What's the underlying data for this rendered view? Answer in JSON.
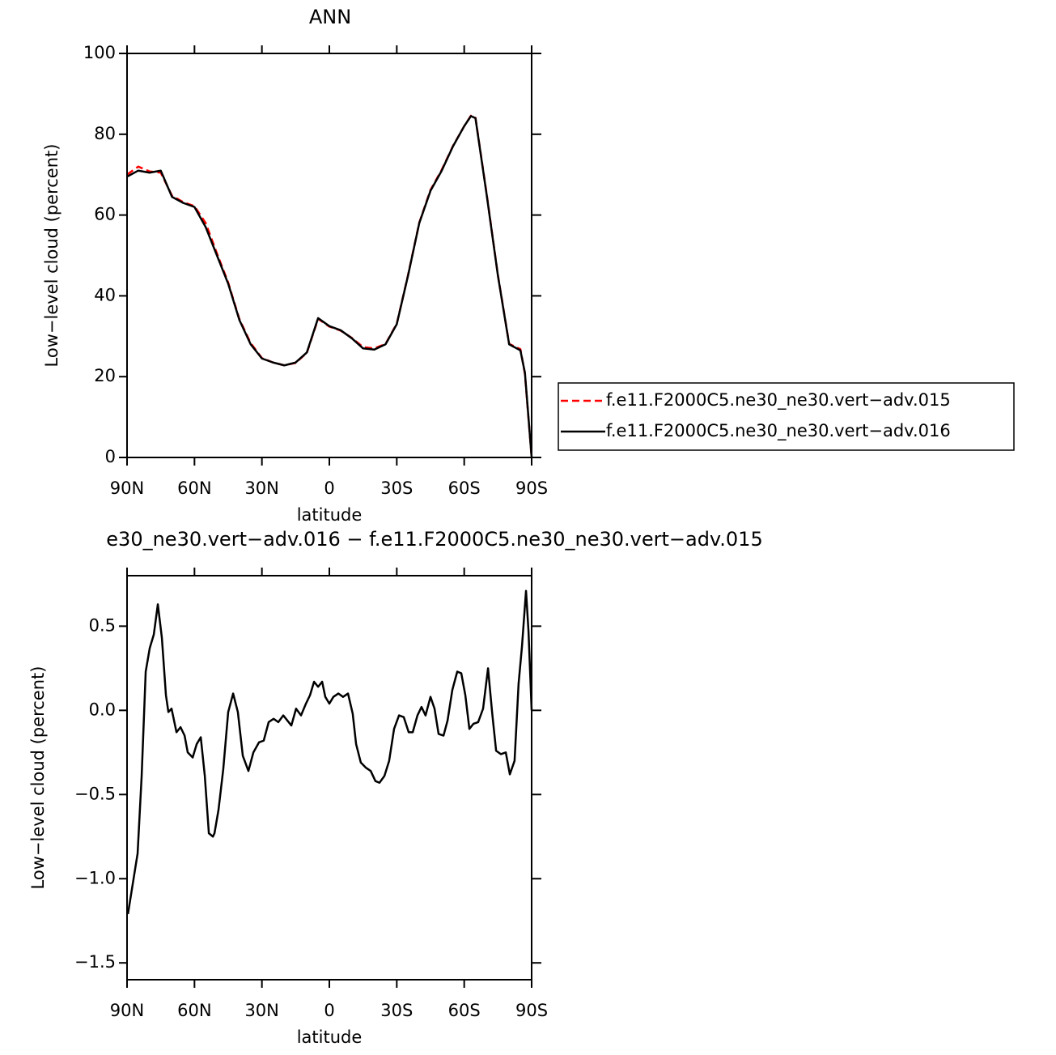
{
  "chart_data": [
    {
      "type": "line",
      "title": "ANN",
      "xlabel": "latitude",
      "ylabel": "Low−level cloud (percent)",
      "x": [
        90,
        85,
        80,
        75,
        70,
        65,
        60,
        55,
        50,
        45,
        40,
        35,
        30,
        25,
        20,
        15,
        10,
        5,
        0,
        -5,
        -10,
        -15,
        -20,
        -25,
        -30,
        -35,
        -40,
        -45,
        -50,
        -55,
        -60,
        -63,
        -65,
        -70,
        -75,
        -80,
        -85,
        -87,
        -90
      ],
      "series": [
        {
          "name": "f.e11.F2000C5.ne30_ne30.vert−adv.015",
          "color": "#ff0000",
          "dash": true,
          "values": [
            70,
            72,
            70.8,
            70.5,
            64.8,
            63.2,
            62.2,
            58,
            50.5,
            43.3,
            34.2,
            28.3,
            24.6,
            23.5,
            22.8,
            23.4,
            25.9,
            34.3,
            32.4,
            31.4,
            29.6,
            27.3,
            27,
            28.1,
            33.1,
            45.1,
            58.1,
            66.2,
            71.2,
            77.1,
            82,
            84.6,
            84.1,
            65.2,
            45.1,
            28.1,
            26.8,
            20.7,
            0
          ]
        },
        {
          "name": "f.e11.F2000C5.ne30_ne30.vert−adv.016",
          "color": "#000000",
          "dash": false,
          "values": [
            69.5,
            71,
            70.5,
            71,
            64.5,
            63,
            62,
            57,
            50,
            43,
            34,
            28,
            24.5,
            23.5,
            22.8,
            23.5,
            26,
            34.5,
            32.5,
            31.5,
            29.5,
            27,
            26.7,
            28,
            33,
            45,
            58,
            66,
            71,
            77,
            82,
            84.5,
            84,
            65,
            45,
            28,
            26.5,
            21,
            0
          ]
        }
      ],
      "xlim": [
        90,
        -90
      ],
      "xticks": [
        {
          "value": 90,
          "label": "90N"
        },
        {
          "value": 60,
          "label": "60N"
        },
        {
          "value": 30,
          "label": "30N"
        },
        0,
        {
          "value": -30,
          "label": "30S"
        },
        {
          "value": -60,
          "label": "60S"
        },
        {
          "value": -90,
          "label": "90S"
        }
      ],
      "ylim": [
        0,
        100
      ],
      "yticks": [
        0,
        20,
        40,
        60,
        80,
        100
      ],
      "legend": "right"
    },
    {
      "type": "line",
      "title": "e30_ne30.vert−adv.016 − f.e11.F2000C5.ne30_ne30.vert−adv.015",
      "xlabel": "latitude",
      "ylabel": "Low−level cloud (percent)",
      "x": [
        89.6,
        85.3,
        83.5,
        81.7,
        79.9,
        78.1,
        76.3,
        74.5,
        72.7,
        71.6,
        70.2,
        68,
        66.2,
        64.4,
        63,
        60.8,
        59,
        57.2,
        55.4,
        53.6,
        51.8,
        51.1,
        49.3,
        47.2,
        45,
        42.8,
        40.7,
        38.5,
        36,
        33.8,
        31.3,
        29.2,
        27,
        24.8,
        22.7,
        20.5,
        18.7,
        16.9,
        14.8,
        12.6,
        10.4,
        8.6,
        6.8,
        5,
        3.2,
        1.8,
        0,
        -1.8,
        -4,
        -6.1,
        -8.3,
        -10.4,
        -11.9,
        -14,
        -16.2,
        -18.4,
        -20.5,
        -22.3,
        -24.5,
        -26.6,
        -28.8,
        -31,
        -33.1,
        -35.3,
        -37.1,
        -39.2,
        -41,
        -42.8,
        -45,
        -46.8,
        -48.6,
        -50.8,
        -52.6,
        -54.7,
        -56.9,
        -58.7,
        -60.5,
        -62.3,
        -64.1,
        -66.2,
        -68.4,
        -70.6,
        -72.4,
        -74.2,
        -76.3,
        -78.5,
        -80.3,
        -82.4,
        -84.2,
        -85.7,
        -87.5,
        -88.6,
        -90
      ],
      "series": [
        {
          "color": "#000000",
          "dash": false,
          "values": [
            -1.21,
            -0.85,
            -0.39,
            0.23,
            0.37,
            0.45,
            0.63,
            0.43,
            0.09,
            -0.01,
            0.01,
            -0.13,
            -0.1,
            -0.15,
            -0.25,
            -0.28,
            -0.2,
            -0.16,
            -0.39,
            -0.73,
            -0.75,
            -0.73,
            -0.59,
            -0.35,
            -0.01,
            0.1,
            -0.01,
            -0.27,
            -0.36,
            -0.25,
            -0.19,
            -0.18,
            -0.07,
            -0.05,
            -0.07,
            -0.03,
            -0.06,
            -0.09,
            0.01,
            -0.03,
            0.04,
            0.09,
            0.17,
            0.14,
            0.17,
            0.08,
            0.04,
            0.08,
            0.1,
            0.08,
            0.1,
            -0.02,
            -0.2,
            -0.31,
            -0.34,
            -0.36,
            -0.42,
            -0.43,
            -0.39,
            -0.3,
            -0.11,
            -0.03,
            -0.04,
            -0.13,
            -0.13,
            -0.03,
            0.02,
            -0.03,
            0.08,
            0.01,
            -0.14,
            -0.15,
            -0.06,
            0.12,
            0.23,
            0.22,
            0.09,
            -0.11,
            -0.08,
            -0.07,
            0.01,
            0.25,
            -0.01,
            -0.24,
            -0.26,
            -0.25,
            -0.38,
            -0.3,
            0.16,
            0.38,
            0.71,
            0.47,
            0
          ]
        }
      ],
      "xlim": [
        90,
        -90
      ],
      "xticks": [
        {
          "value": 90,
          "label": "90N"
        },
        {
          "value": 60,
          "label": "60N"
        },
        {
          "value": 30,
          "label": "30N"
        },
        0,
        {
          "value": -30,
          "label": "30S"
        },
        {
          "value": -60,
          "label": "60S"
        },
        {
          "value": -90,
          "label": "90S"
        }
      ],
      "ylim": [
        -1.6,
        0.8
      ],
      "yticks": [
        {
          "value": -1.5,
          "label": "−1.5"
        },
        {
          "value": -1,
          "label": "−1.0"
        },
        {
          "value": -0.5,
          "label": "−0.5"
        },
        {
          "value": 0,
          "label": "0.0"
        },
        0.5
      ]
    }
  ]
}
